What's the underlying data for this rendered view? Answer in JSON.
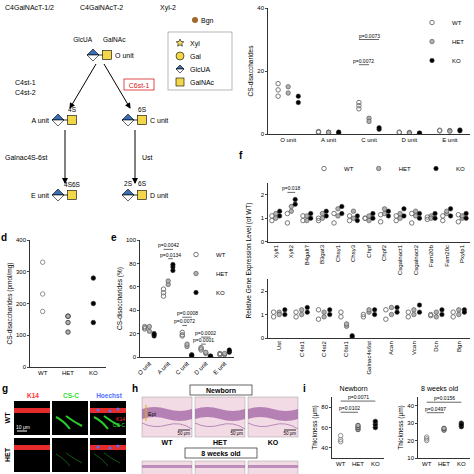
{
  "diagram": {
    "top_labels": [
      "C4GalNAcT-1/2",
      "C4GalNAcT-2",
      "Xyl-2",
      "Bgn"
    ],
    "legend": [
      {
        "label": "Xyl",
        "shape": "star",
        "color": "#f7e15a"
      },
      {
        "label": "Gal",
        "shape": "circle",
        "color": "#f2d74a"
      },
      {
        "label": "GlcUA",
        "shape": "diamond",
        "color": "#3a6fb5"
      },
      {
        "label": "GalNAc",
        "shape": "square",
        "color": "#f2d74a"
      }
    ],
    "sugar_labels": [
      "GlcUA",
      "GalNAc"
    ],
    "units": [
      {
        "label": "O unit",
        "sulfation": []
      },
      {
        "label": "A unit",
        "sulfation": [
          "4S"
        ]
      },
      {
        "label": "C unit",
        "sulfation": [
          "6S"
        ]
      },
      {
        "label": "E unit",
        "sulfation": [
          "4S6S"
        ]
      },
      {
        "label": "D unit",
        "sulfation": [
          "2S",
          "6S"
        ]
      }
    ],
    "enzymes": [
      {
        "label": "C4st-1",
        "color": "#000000"
      },
      {
        "label": "C4st-2",
        "color": "#000000"
      },
      {
        "label": "C6st-1",
        "color": "#d62020"
      },
      {
        "label": "Galnac4S-6st",
        "color": "#000000"
      },
      {
        "label": "Ust",
        "color": "#000000"
      }
    ]
  },
  "chart_data": [
    {
      "type": "strip",
      "ylabel": "CS-disaccharides",
      "categories": [
        "O unit",
        "A unit",
        "C unit",
        "D unit",
        "E unit"
      ],
      "ylim": [
        0,
        40
      ],
      "yticks": [
        0,
        20,
        40
      ],
      "legend": "top right",
      "series": [
        {
          "name": "WT",
          "color": "#777777",
          "marker": "circle-open",
          "values": [
            [
              12,
              14,
              16
            ],
            [
              0.5,
              0.8
            ],
            [
              10,
              9,
              8
            ],
            [
              0.6,
              0.4
            ],
            [
              1,
              1.2
            ]
          ]
        },
        {
          "name": "HET",
          "color": "#b0b0b0",
          "marker": "circle",
          "values": [
            [
              13,
              15
            ],
            [
              0.6,
              0.5
            ],
            [
              5,
              4
            ],
            [
              0.5,
              0.3
            ],
            [
              1.1,
              0.9
            ]
          ]
        },
        {
          "name": "KO",
          "color": "#000000",
          "marker": "circle",
          "values": [
            [
              10,
              12
            ],
            [
              0.4,
              0.6
            ],
            [
              1.5,
              2
            ],
            [
              0.2,
              0.3
            ],
            [
              1.3,
              1
            ]
          ]
        }
      ],
      "annotations": [
        {
          "text": "p=0.0073",
          "category": "C unit",
          "from": "WT",
          "to": "KO",
          "y": 30
        },
        {
          "text": "p=0.0072",
          "category": "C unit",
          "from": "WT",
          "to": "HET",
          "y": 22
        }
      ]
    },
    {
      "panel": "d",
      "type": "strip",
      "ylabel": "CS-disaccharides (pmol/mg)",
      "categories": [
        "WT",
        "HET",
        "KO"
      ],
      "ylim": [
        0,
        400
      ],
      "yticks": [
        0,
        100,
        200,
        300,
        400
      ],
      "values": [
        [
          330,
          230,
          175
        ],
        [
          160,
          140,
          110,
          160
        ],
        [
          280,
          200,
          140
        ]
      ],
      "colors": [
        "#777777",
        "#b0b0b0",
        "#000000"
      ],
      "markers": [
        "circle-open",
        "circle",
        "circle"
      ]
    },
    {
      "panel": "e",
      "type": "strip",
      "ylabel": "CS-disaccharides (%)",
      "categories": [
        "O unit",
        "A unit",
        "C unit",
        "D unit",
        "E unit"
      ],
      "ylim": [
        0,
        100
      ],
      "yticks": [
        0,
        20,
        40,
        60,
        80,
        100
      ],
      "legend": "top right",
      "series": [
        {
          "name": "WT",
          "color": "#777777",
          "marker": "circle-open",
          "values": [
            [
              24,
              26,
              25
            ],
            [
              55,
              52,
              58
            ],
            [
              19,
              21,
              18
            ],
            [
              8,
              7,
              6
            ],
            [
              3,
              2,
              2.5
            ]
          ]
        },
        {
          "name": "HET",
          "color": "#b0b0b0",
          "marker": "circle",
          "values": [
            [
              22,
              26
            ],
            [
              62,
              65
            ],
            [
              9,
              11
            ],
            [
              3,
              4
            ],
            [
              2,
              3
            ]
          ]
        },
        {
          "name": "KO",
          "color": "#000000",
          "marker": "circle",
          "values": [
            [
              18,
              20,
              19
            ],
            [
              74,
              77,
              79
            ],
            [
              1,
              2,
              1.5
            ],
            [
              0.5,
              0.8,
              0.6
            ],
            [
              4,
              5,
              6
            ]
          ]
        }
      ],
      "annotations": [
        {
          "text": "p=0.0042",
          "category": "A unit",
          "from": "WT",
          "to": "KO",
          "y": 92
        },
        {
          "text": "p=0.0134",
          "category": "A unit",
          "from": "HET",
          "to": "KO",
          "y": 84
        },
        {
          "text": "p=0.0008",
          "category": "C unit",
          "from": "WT",
          "to": "KO",
          "y": 34
        },
        {
          "text": "p=0.0072",
          "category": "C unit",
          "from": "WT",
          "to": "HET",
          "y": 27
        },
        {
          "text": "p=0.0002",
          "category": "D unit",
          "from": "WT",
          "to": "KO",
          "y": 17
        },
        {
          "text": "p=0.0001",
          "category": "D unit",
          "from": "WT",
          "to": "HET",
          "y": 11
        }
      ]
    },
    {
      "panel": "f",
      "type": "strip",
      "ylabel": "Relative Gene Expression Level (of WT)",
      "categories": [
        "Xylt1",
        "Xylt2",
        "B4galt7",
        "B3gat3",
        "Chsy1",
        "Chsy3",
        "Chpf",
        "Chpf2",
        "Csgalnact1",
        "Csgalnact2",
        "Fam20b",
        "Fam20c",
        "Pxylp1"
      ],
      "ylim": [
        0,
        2.5
      ],
      "yticks": [
        0,
        1,
        2
      ],
      "legend": "top right",
      "series": [
        {
          "name": "WT",
          "color": "#777777",
          "marker": "circle-open",
          "values": [
            [
              0.9,
              1.1
            ],
            [
              0.8,
              1.2
            ],
            [
              0.9,
              1.1
            ],
            [
              1.0,
              0.9
            ],
            [
              0.8,
              1.2
            ],
            [
              0.9,
              1.1
            ],
            [
              1.0,
              1.0
            ],
            [
              0.85,
              1.15
            ],
            [
              0.9,
              1.1
            ],
            [
              0.8,
              1.2
            ],
            [
              0.95,
              1.05
            ],
            [
              0.9,
              1.1
            ],
            [
              0.85,
              1.15
            ]
          ]
        },
        {
          "name": "HET",
          "color": "#b0b0b0",
          "marker": "circle",
          "values": [
            [
              1.2,
              1.0
            ],
            [
              1.3,
              1.5
            ],
            [
              1.1,
              0.9
            ],
            [
              1.2,
              1.0
            ],
            [
              1.4,
              1.1
            ],
            [
              1.0,
              1.3
            ],
            [
              1.1,
              0.9
            ],
            [
              1.2,
              1.4
            ],
            [
              1.0,
              1.2
            ],
            [
              1.3,
              1.1
            ],
            [
              1.1,
              1.0
            ],
            [
              1.2,
              1.3
            ],
            [
              1.0,
              1.1
            ]
          ]
        },
        {
          "name": "KO",
          "color": "#000000",
          "marker": "circle",
          "values": [
            [
              1.1,
              1.3
            ],
            [
              1.6,
              1.8
            ],
            [
              1.0,
              1.2
            ],
            [
              1.1,
              1.3
            ],
            [
              1.2,
              1.5
            ],
            [
              1.1,
              0.9
            ],
            [
              1.2,
              1.0
            ],
            [
              1.3,
              1.1
            ],
            [
              1.1,
              1.4
            ],
            [
              1.2,
              1.0
            ],
            [
              1.0,
              1.2
            ],
            [
              1.4,
              1.1
            ],
            [
              1.2,
              1.0
            ]
          ]
        }
      ],
      "annotations": [
        {
          "text": "p=0.018",
          "category": "Xylt2",
          "from": "WT",
          "to": "KO",
          "y": 2.1
        }
      ]
    },
    {
      "type": "strip",
      "categories": [
        "Ust",
        "C4st1",
        "C4st2",
        "C6st1",
        "Galnac4s6st",
        "Acan",
        "Vcan",
        "Dcn",
        "Bgn"
      ],
      "ylim": [
        0,
        2.5
      ],
      "yticks": [
        0,
        1,
        2
      ],
      "series": [
        {
          "name": "WT",
          "color": "#777777",
          "marker": "circle-open",
          "values": [
            [
              0.9,
              1.1
            ],
            [
              0.9,
              1.1
            ],
            [
              0.8,
              1.2
            ],
            [
              0.9,
              1.1
            ],
            [
              1.0,
              0.9
            ],
            [
              0.8,
              1.2
            ],
            [
              0.9,
              1.1
            ],
            [
              1.0,
              0.95
            ],
            [
              0.9,
              1.1
            ]
          ]
        },
        {
          "name": "HET",
          "color": "#b0b0b0",
          "marker": "circle",
          "values": [
            [
              1.1,
              1.0
            ],
            [
              1.0,
              1.2
            ],
            [
              1.1,
              0.9
            ],
            [
              0.5,
              0.6
            ],
            [
              1.1,
              1.2
            ],
            [
              1.0,
              1.3
            ],
            [
              1.2,
              1.0
            ],
            [
              1.1,
              0.9
            ],
            [
              1.0,
              1.2
            ]
          ]
        },
        {
          "name": "KO",
          "color": "#000000",
          "marker": "circle",
          "values": [
            [
              1.2,
              1.0
            ],
            [
              1.1,
              1.3
            ],
            [
              1.0,
              1.2
            ],
            [
              0.05,
              0.1
            ],
            [
              1.2,
              1.0
            ],
            [
              1.3,
              1.1
            ],
            [
              1.1,
              1.4
            ],
            [
              1.0,
              1.2
            ],
            [
              1.2,
              1.1
            ]
          ]
        }
      ]
    },
    {
      "panel": "i",
      "type": "strip",
      "title": "Newborn",
      "ylabel": "Thickness (μm)",
      "categories": [
        "WT",
        "HET",
        "KO"
      ],
      "ylim": [
        30,
        90
      ],
      "yticks": [
        40,
        60,
        80
      ],
      "values": [
        [
          46,
          48,
          52
        ],
        [
          58,
          60,
          62
        ],
        [
          60,
          63,
          66
        ]
      ],
      "colors": [
        "#777777",
        "#b0b0b0",
        "#000000"
      ],
      "markers": [
        "circle-open",
        "circle",
        "circle"
      ],
      "annotations": [
        {
          "text": "p=0.0071",
          "from": "WT",
          "to": "KO",
          "y": 86
        },
        {
          "text": "p=0.0102",
          "from": "WT",
          "to": "HET",
          "y": 75
        }
      ]
    },
    {
      "type": "strip",
      "title": "8 weeks old",
      "ylabel": "Thickness (μm)",
      "categories": [
        "WT",
        "HET",
        "KO"
      ],
      "ylim": [
        10,
        45
      ],
      "yticks": [
        10,
        20,
        30,
        40
      ],
      "values": [
        [
          20,
          22,
          21
        ],
        [
          26,
          27
        ],
        [
          28,
          30,
          29
        ]
      ],
      "colors": [
        "#777777",
        "#b0b0b0",
        "#000000"
      ],
      "markers": [
        "circle-open",
        "circle",
        "circle"
      ],
      "annotations": [
        {
          "text": "p=0.0156",
          "from": "WT",
          "to": "KO",
          "y": 42
        },
        {
          "text": "p=0.0497",
          "from": "WT",
          "to": "HET",
          "y": 36
        }
      ]
    }
  ],
  "immunofluorescence": {
    "panel": "g",
    "rows": [
      "WT",
      "HET"
    ],
    "columns": [
      {
        "label": "K14",
        "color": "#ff3030"
      },
      {
        "label": "CS-C",
        "color": "#30e030"
      },
      {
        "label": "Hoechst",
        "color": "#5070ff"
      }
    ],
    "merge_labels": [
      {
        "text": "K14",
        "color": "#ff3030"
      },
      {
        "text": "CS-C",
        "color": "#30e030"
      }
    ],
    "scale_bar": "10 μm"
  },
  "histology": {
    "panel": "h",
    "sections": [
      {
        "title": "Newborn",
        "images": [
          "WT",
          "HET",
          "KO"
        ],
        "label": "Epi",
        "scale_bar": "50 μm"
      },
      {
        "title": "8 weeks old"
      }
    ]
  }
}
